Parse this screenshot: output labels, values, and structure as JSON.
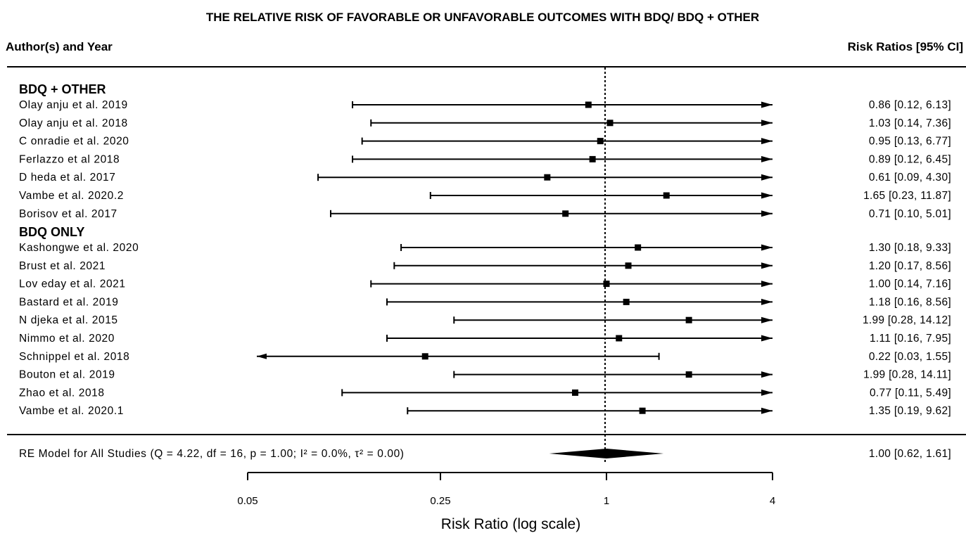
{
  "title": "THE RELATIVE RISK OF FAVORABLE OR UNFAVORABLE OUTCOMES WITH BDQ/ BDQ + OTHER",
  "header_left": "Author(s) and Year",
  "header_right": "Risk Ratios [95% CI]",
  "chart_data": {
    "type": "forest",
    "xlabel": "Risk Ratio (log scale)",
    "x_scale": "log",
    "xlim": [
      0.05,
      4
    ],
    "x_ticks": [
      0.05,
      0.25,
      1,
      4
    ],
    "x_tick_labels": [
      "0.05",
      "0.25",
      "1",
      "4"
    ],
    "reference_line": 1,
    "groups": [
      {
        "label": "BDQ + OTHER",
        "studies": [
          {
            "study": "Olay anju et al. 2019",
            "rr": 0.86,
            "lower": 0.12,
            "upper": 6.13,
            "ci_text": "0.86 [0.12,  6.13]"
          },
          {
            "study": "Olay anju et al. 2018",
            "rr": 1.03,
            "lower": 0.14,
            "upper": 7.36,
            "ci_text": "1.03 [0.14,  7.36]"
          },
          {
            "study": "C onradie et al. 2020",
            "rr": 0.95,
            "lower": 0.13,
            "upper": 6.77,
            "ci_text": "0.95 [0.13,  6.77]"
          },
          {
            "study": "Ferlazzo et al 2018",
            "rr": 0.89,
            "lower": 0.12,
            "upper": 6.45,
            "ci_text": "0.89 [0.12,  6.45]"
          },
          {
            "study": "D heda et al. 2017",
            "rr": 0.61,
            "lower": 0.09,
            "upper": 4.3,
            "ci_text": "0.61 [0.09,  4.30]"
          },
          {
            "study": "Vambe et al. 2020.2",
            "rr": 1.65,
            "lower": 0.23,
            "upper": 11.87,
            "ci_text": "1.65 [0.23, 11.87]"
          },
          {
            "study": "Borisov  et al. 2017",
            "rr": 0.71,
            "lower": 0.1,
            "upper": 5.01,
            "ci_text": "0.71 [0.10,  5.01]"
          }
        ]
      },
      {
        "label": "BDQ ONLY",
        "studies": [
          {
            "study": "Kashongwe et al. 2020",
            "rr": 1.3,
            "lower": 0.18,
            "upper": 9.33,
            "ci_text": "1.30 [0.18,  9.33]"
          },
          {
            "study": "Brust et al. 2021",
            "rr": 1.2,
            "lower": 0.17,
            "upper": 8.56,
            "ci_text": "1.20 [0.17,  8.56]"
          },
          {
            "study": "Lov eday  et al. 2021",
            "rr": 1.0,
            "lower": 0.14,
            "upper": 7.16,
            "ci_text": "1.00 [0.14,  7.16]"
          },
          {
            "study": "Bastard et al. 2019",
            "rr": 1.18,
            "lower": 0.16,
            "upper": 8.56,
            "ci_text": "1.18 [0.16,  8.56]"
          },
          {
            "study": "N djeka et al. 2015",
            "rr": 1.99,
            "lower": 0.28,
            "upper": 14.12,
            "ci_text": "1.99 [0.28, 14.12]"
          },
          {
            "study": "Nimmo et al. 2020",
            "rr": 1.11,
            "lower": 0.16,
            "upper": 7.95,
            "ci_text": "1.11 [0.16,  7.95]"
          },
          {
            "study": "Schnippel et al. 2018",
            "rr": 0.22,
            "lower": 0.03,
            "upper": 1.55,
            "ci_text": "0.22 [0.03,  1.55]"
          },
          {
            "study": "Bouton et al. 2019",
            "rr": 1.99,
            "lower": 0.28,
            "upper": 14.11,
            "ci_text": "1.99 [0.28, 14.11]"
          },
          {
            "study": "Zhao et al. 2018",
            "rr": 0.77,
            "lower": 0.11,
            "upper": 5.49,
            "ci_text": "0.77 [0.11,  5.49]"
          },
          {
            "study": "Vambe et al. 2020.1",
            "rr": 1.35,
            "lower": 0.19,
            "upper": 9.62,
            "ci_text": "1.35 [0.19,  9.62]"
          }
        ]
      }
    ],
    "summary": {
      "label": "RE Model for All Studies (Q = 4.22, df = 16, p = 1.00; I² = 0.0%, τ² = 0.00)",
      "rr": 1.0,
      "lower": 0.62,
      "upper": 1.61,
      "ci_text": "1.00 [0.62,  1.61]"
    }
  }
}
